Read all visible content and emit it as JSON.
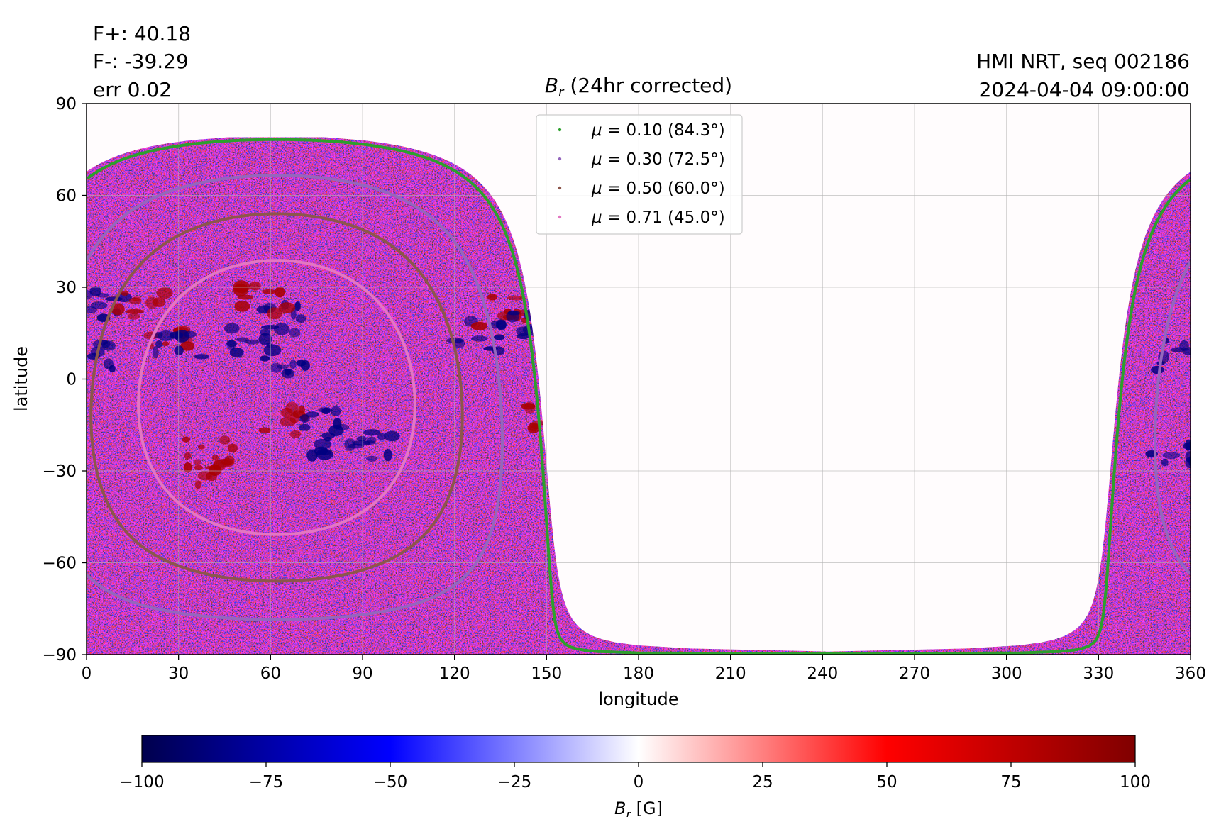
{
  "header": {
    "flux_pos": "F+: 40.18",
    "flux_neg": "F-: -39.29",
    "error": "err 0.02",
    "instrument": "HMI NRT, seq 002186",
    "timestamp": "2024-04-04 09:00:00"
  },
  "chart_data": {
    "type": "heatmap",
    "title_symbol": "B",
    "title_subscript": "r",
    "title_text": " (24hr corrected)",
    "xlabel": "longitude",
    "ylabel": "latitude",
    "xlim": [
      0,
      360
    ],
    "ylim": [
      -90,
      90
    ],
    "xticks": [
      0,
      30,
      60,
      90,
      120,
      150,
      180,
      210,
      240,
      270,
      300,
      330,
      360
    ],
    "yticks": [
      90,
      60,
      30,
      0,
      -30,
      -60,
      -90
    ],
    "xtick_labels": [
      "0",
      "30",
      "60",
      "90",
      "120",
      "150",
      "180",
      "210",
      "240",
      "270",
      "300",
      "330",
      "360"
    ],
    "ytick_labels": [
      "90",
      "60",
      "30",
      "0",
      "−30",
      "−60",
      "−90"
    ],
    "grid": true,
    "legend_position": "top-center",
    "disk_center": {
      "longitude": 62,
      "latitude": -6
    },
    "legend": [
      {
        "label_symbol": "μ",
        "label_rest": " = 0.10 (84.3°)",
        "mu": 0.1,
        "angle_deg": 84.3,
        "color": "#2ca02c"
      },
      {
        "label_symbol": "μ",
        "label_rest": " = 0.30 (72.5°)",
        "mu": 0.3,
        "angle_deg": 72.5,
        "color": "#9467bd"
      },
      {
        "label_symbol": "μ",
        "label_rest": " = 0.50 (60.0°)",
        "mu": 0.5,
        "angle_deg": 60.0,
        "color": "#8c564b"
      },
      {
        "label_symbol": "μ",
        "label_rest": " = 0.71 (45.0°)",
        "mu": 0.71,
        "angle_deg": 45.0,
        "color": "#e377c2"
      }
    ],
    "active_regions": [
      {
        "longitude": 3,
        "latitude": 8,
        "polarity": "negative"
      },
      {
        "longitude": 6,
        "latitude": 24,
        "polarity": "negative"
      },
      {
        "longitude": 18,
        "latitude": 24,
        "polarity": "positive"
      },
      {
        "longitude": 26,
        "latitude": 14,
        "polarity": "positive"
      },
      {
        "longitude": 30,
        "latitude": 10,
        "polarity": "negative"
      },
      {
        "longitude": 52,
        "latitude": 12,
        "polarity": "negative"
      },
      {
        "longitude": 66,
        "latitude": 20,
        "polarity": "negative"
      },
      {
        "longitude": 64,
        "latitude": 6,
        "polarity": "negative"
      },
      {
        "longitude": 58,
        "latitude": 26,
        "polarity": "positive"
      },
      {
        "longitude": 40,
        "latitude": -24,
        "polarity": "positive"
      },
      {
        "longitude": 36,
        "latitude": -30,
        "polarity": "positive"
      },
      {
        "longitude": 64,
        "latitude": -14,
        "polarity": "positive"
      },
      {
        "longitude": 76,
        "latitude": -14,
        "polarity": "negative"
      },
      {
        "longitude": 80,
        "latitude": -20,
        "polarity": "negative"
      },
      {
        "longitude": 96,
        "latitude": -22,
        "polarity": "negative"
      },
      {
        "longitude": 128,
        "latitude": 14,
        "polarity": "negative"
      },
      {
        "longitude": 136,
        "latitude": 22,
        "polarity": "positive"
      },
      {
        "longitude": 142,
        "latitude": 18,
        "polarity": "negative"
      },
      {
        "longitude": 148,
        "latitude": -12,
        "polarity": "positive"
      },
      {
        "longitude": 356,
        "latitude": 8,
        "polarity": "negative"
      },
      {
        "longitude": 354,
        "latitude": -24,
        "polarity": "negative"
      }
    ],
    "colorbar": {
      "label_symbol": "B",
      "label_subscript": "r",
      "label_rest": " [G]",
      "range": [
        -100,
        100
      ],
      "ticks": [
        -100,
        -75,
        -50,
        -25,
        0,
        25,
        50,
        75,
        100
      ],
      "tick_labels": [
        "−100",
        "−75",
        "−50",
        "−25",
        "0",
        "25",
        "50",
        "75",
        "100"
      ],
      "colormap": "seismic"
    }
  }
}
